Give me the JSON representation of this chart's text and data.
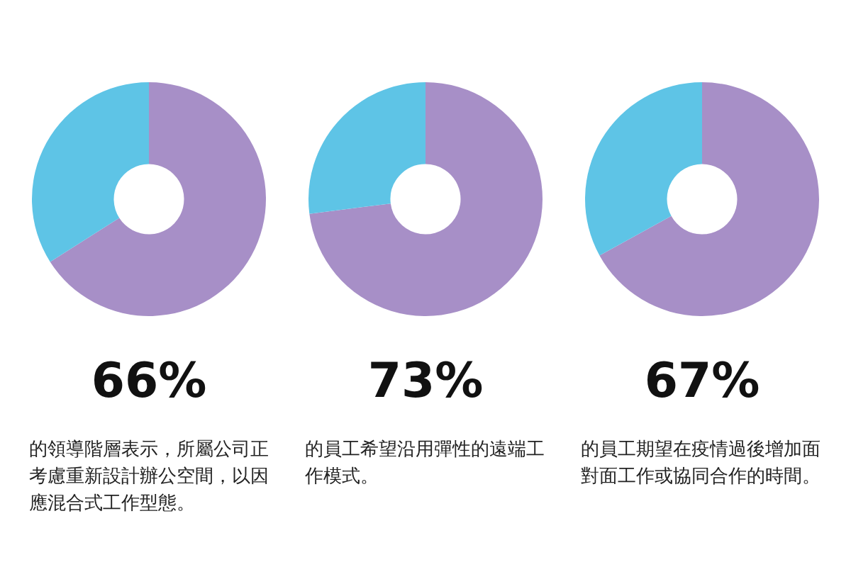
{
  "chart_data": [
    {
      "type": "donut",
      "categories": [
        null,
        null
      ],
      "values": [
        66,
        34
      ],
      "colors": [
        "#a78fc7",
        "#5ec4e6"
      ],
      "value_labels": [
        "66%",
        null
      ],
      "annotations": [
        "的領導階層表示，所屬公司正考慮重新設計辦公空間，以因應混合式工作型態。"
      ]
    },
    {
      "type": "donut",
      "categories": [
        null,
        null
      ],
      "values": [
        73,
        27
      ],
      "colors": [
        "#a78fc7",
        "#5ec4e6"
      ],
      "value_labels": [
        "73%",
        null
      ],
      "annotations": [
        "的員工希望沿用彈性的遠端工作模式。"
      ]
    },
    {
      "type": "donut",
      "categories": [
        null,
        null
      ],
      "values": [
        67,
        33
      ],
      "colors": [
        "#a78fc7",
        "#5ec4e6"
      ],
      "value_labels": [
        "67%",
        null
      ],
      "annotations": [
        "的員工期望在疫情過後增加面對面工作或協同合作的時間。"
      ]
    }
  ]
}
